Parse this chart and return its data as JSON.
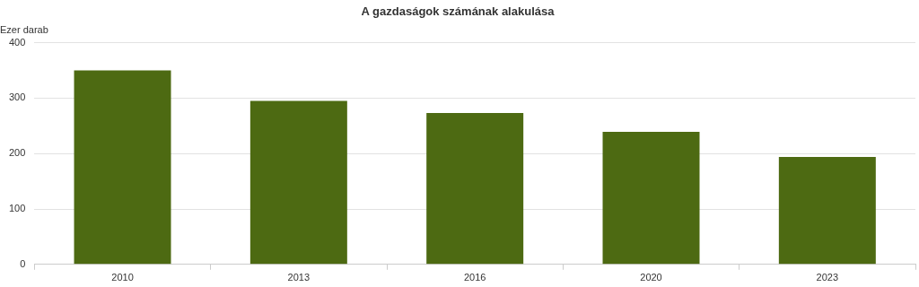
{
  "chart_data": {
    "type": "bar",
    "title": "A gazdaságok számának alakulása",
    "ylabel": "Ezer darab",
    "categories": [
      "2010",
      "2013",
      "2016",
      "2020",
      "2023"
    ],
    "values": [
      350,
      295,
      273,
      239,
      194
    ],
    "color": "#4d6a12",
    "ylim": [
      0,
      400
    ],
    "yticks": [
      0,
      100,
      200,
      300,
      400
    ],
    "grid": "y"
  }
}
